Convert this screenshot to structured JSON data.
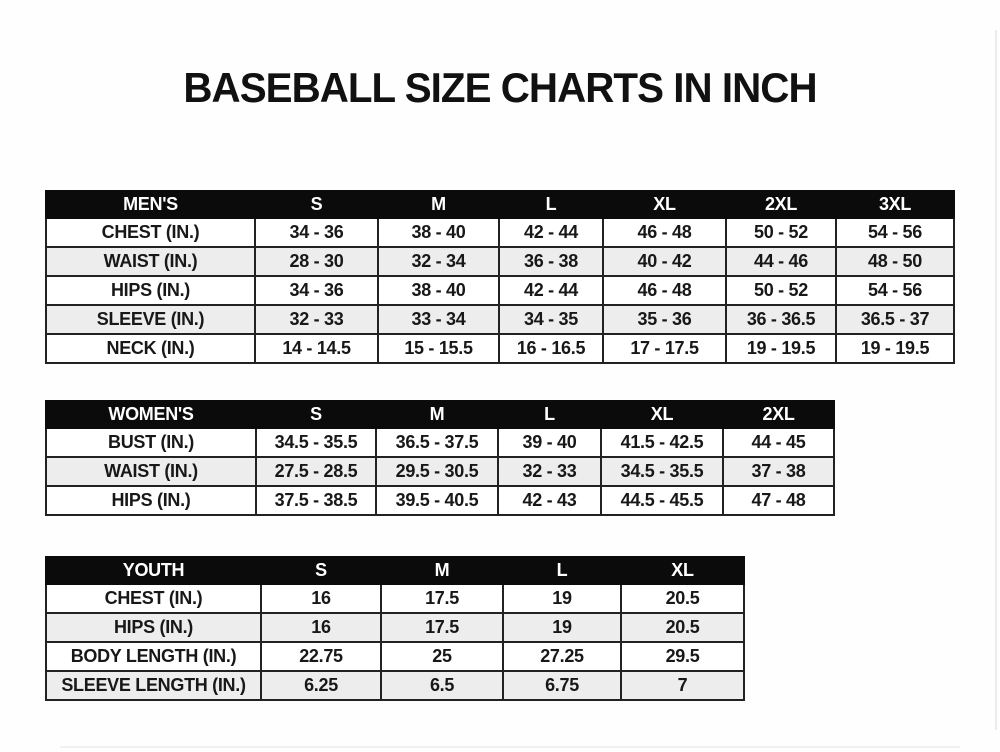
{
  "title": "BASEBALL SIZE CHARTS IN INCH",
  "colors": {
    "header_bg": "#0b0b0b",
    "header_text": "#ffffff",
    "row_alt_bg": "#ededed",
    "text": "#181818",
    "grid": "#222222"
  },
  "tables": [
    {
      "name": "mens",
      "header": [
        "MEN'S",
        "S",
        "M",
        "L",
        "XL",
        "2XL",
        "3XL"
      ],
      "rows": [
        {
          "label": "CHEST (IN.)",
          "values": [
            "34 - 36",
            "38 - 40",
            "42 - 44",
            "46 - 48",
            "50 - 52",
            "54 - 56"
          ]
        },
        {
          "label": "WAIST (IN.)",
          "values": [
            "28 - 30",
            "32 - 34",
            "36 - 38",
            "40 - 42",
            "44 - 46",
            "48 - 50"
          ]
        },
        {
          "label": "HIPS (IN.)",
          "values": [
            "34 - 36",
            "38 - 40",
            "42 - 44",
            "46 - 48",
            "50 - 52",
            "54 - 56"
          ]
        },
        {
          "label": "SLEEVE (IN.)",
          "values": [
            "32 - 33",
            "33 - 34",
            "34 - 35",
            "35 - 36",
            "36 - 36.5",
            "36.5 - 37"
          ]
        },
        {
          "label": "NECK (IN.)",
          "values": [
            "14 - 14.5",
            "15 - 15.5",
            "16 - 16.5",
            "17 - 17.5",
            "19 - 19.5",
            "19 - 19.5"
          ]
        }
      ]
    },
    {
      "name": "womens",
      "header": [
        "WOMEN'S",
        "S",
        "M",
        "L",
        "XL",
        "2XL"
      ],
      "rows": [
        {
          "label": "BUST (IN.)",
          "values": [
            "34.5 - 35.5",
            "36.5 - 37.5",
            "39 - 40",
            "41.5 - 42.5",
            "44 - 45"
          ]
        },
        {
          "label": "WAIST (IN.)",
          "values": [
            "27.5 - 28.5",
            "29.5 - 30.5",
            "32 - 33",
            "34.5 - 35.5",
            "37 - 38"
          ]
        },
        {
          "label": "HIPS (IN.)",
          "values": [
            "37.5 - 38.5",
            "39.5 - 40.5",
            "42 - 43",
            "44.5 - 45.5",
            "47 - 48"
          ]
        }
      ]
    },
    {
      "name": "youth",
      "header": [
        "YOUTH",
        "S",
        "M",
        "L",
        "XL"
      ],
      "rows": [
        {
          "label": "CHEST (IN.)",
          "values": [
            "16",
            "17.5",
            "19",
            "20.5"
          ]
        },
        {
          "label": "HIPS (IN.)",
          "values": [
            "16",
            "17.5",
            "19",
            "20.5"
          ]
        },
        {
          "label": "BODY LENGTH (IN.)",
          "values": [
            "22.75",
            "25",
            "27.25",
            "29.5"
          ]
        },
        {
          "label": "SLEEVE LENGTH (IN.)",
          "values": [
            "6.25",
            "6.5",
            "6.75",
            "7"
          ]
        }
      ]
    }
  ]
}
